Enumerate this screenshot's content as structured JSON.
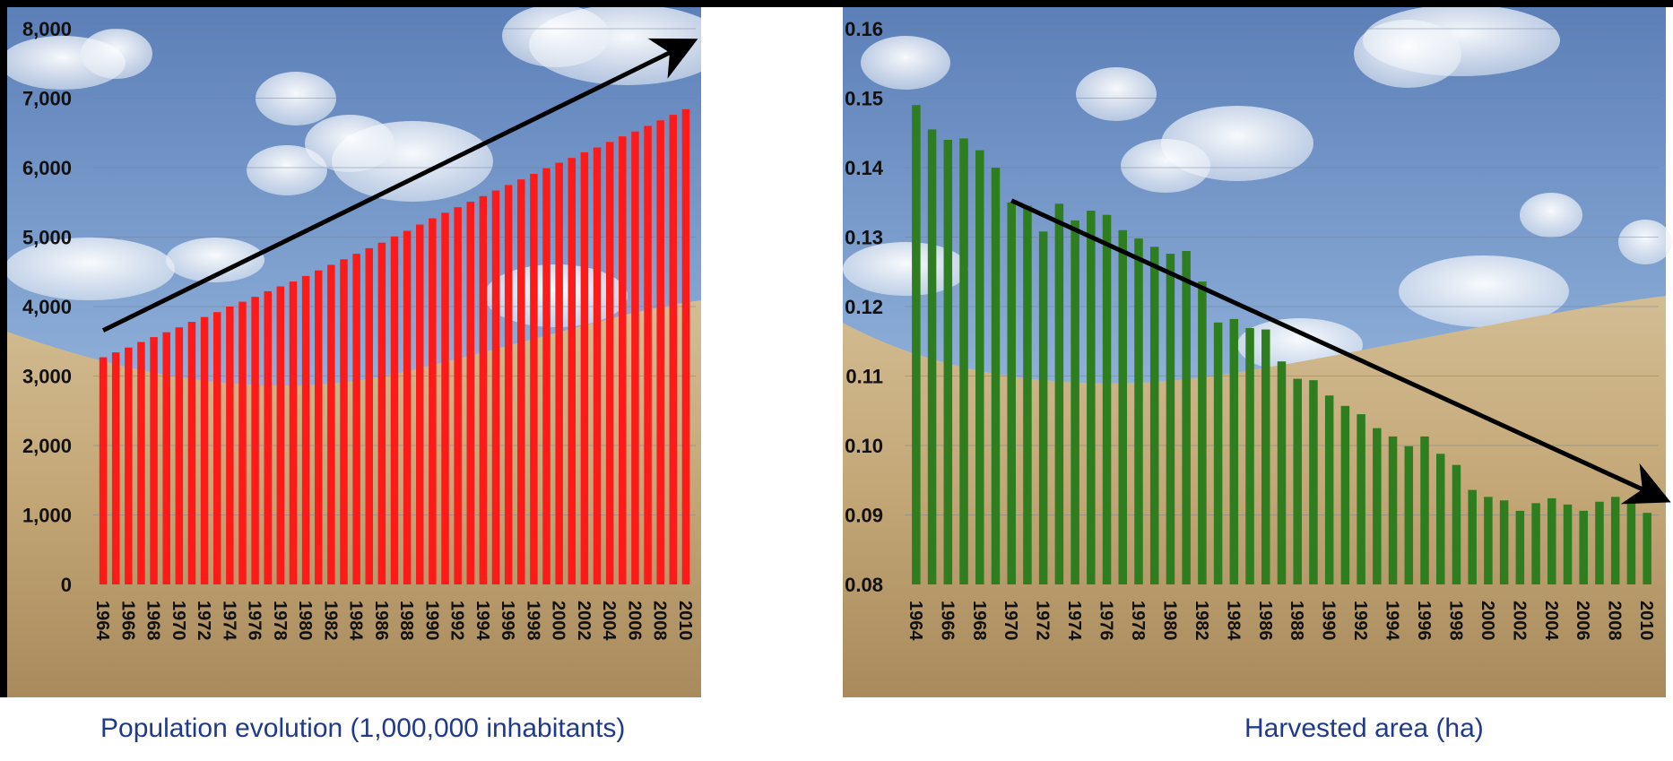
{
  "chart_data": [
    {
      "type": "bar",
      "caption": "Population evolution (1,000,000 inhabitants)",
      "color": "#ff1a1a",
      "ylim": [
        0,
        8000
      ],
      "y_ticks": [
        "0",
        "1,000",
        "2,000",
        "3,000",
        "4,000",
        "5,000",
        "6,000",
        "7,000",
        "8,000"
      ],
      "x_tick_labels": [
        "1964",
        "1966",
        "1968",
        "1970",
        "1972",
        "1974",
        "1976",
        "1978",
        "1980",
        "1982",
        "1984",
        "1986",
        "1988",
        "1990",
        "1992",
        "1994",
        "1996",
        "1998",
        "2000",
        "2002",
        "2004",
        "2006",
        "2008",
        "2010"
      ],
      "categories": [
        1964,
        1965,
        1966,
        1967,
        1968,
        1969,
        1970,
        1971,
        1972,
        1973,
        1974,
        1975,
        1976,
        1977,
        1978,
        1979,
        1980,
        1981,
        1982,
        1983,
        1984,
        1985,
        1986,
        1987,
        1988,
        1989,
        1990,
        1991,
        1992,
        1993,
        1994,
        1995,
        1996,
        1997,
        1998,
        1999,
        2000,
        2001,
        2002,
        2003,
        2004,
        2005,
        2006,
        2007,
        2008,
        2009,
        2010
      ],
      "values": [
        3270,
        3340,
        3410,
        3490,
        3560,
        3630,
        3700,
        3780,
        3850,
        3920,
        4000,
        4070,
        4140,
        4220,
        4290,
        4360,
        4440,
        4520,
        4600,
        4680,
        4760,
        4840,
        4920,
        5010,
        5090,
        5180,
        5270,
        5350,
        5430,
        5510,
        5590,
        5670,
        5750,
        5830,
        5910,
        5990,
        6070,
        6140,
        6220,
        6290,
        6370,
        6450,
        6520,
        6600,
        6680,
        6760,
        6840
      ],
      "trend": "up",
      "grid": true
    },
    {
      "type": "bar",
      "caption": "Harvested area (ha)",
      "color": "#2e7d1e",
      "ylim": [
        0.08,
        0.16
      ],
      "y_ticks": [
        "0.08",
        "0.09",
        "0.10",
        "0.11",
        "0.12",
        "0.13",
        "0.14",
        "0.15",
        "0.16"
      ],
      "x_tick_labels": [
        "1964",
        "1966",
        "1968",
        "1970",
        "1972",
        "1974",
        "1976",
        "1978",
        "1980",
        "1982",
        "1984",
        "1986",
        "1988",
        "1990",
        "1992",
        "1994",
        "1996",
        "1998",
        "2000",
        "2002",
        "2004",
        "2006",
        "2008",
        "2010"
      ],
      "categories": [
        1964,
        1965,
        1966,
        1967,
        1968,
        1969,
        1970,
        1971,
        1972,
        1973,
        1974,
        1975,
        1976,
        1977,
        1978,
        1979,
        1980,
        1981,
        1982,
        1983,
        1984,
        1985,
        1986,
        1987,
        1988,
        1989,
        1990,
        1991,
        1992,
        1993,
        1994,
        1995,
        1996,
        1997,
        1998,
        1999,
        2000,
        2001,
        2002,
        2003,
        2004,
        2005,
        2006,
        2007,
        2008,
        2009,
        2010
      ],
      "values": [
        0.149,
        0.1455,
        0.144,
        0.1442,
        0.1425,
        0.14,
        0.135,
        0.1345,
        0.1308,
        0.1348,
        0.1324,
        0.1338,
        0.1332,
        0.131,
        0.1298,
        0.1286,
        0.1276,
        0.128,
        0.1236,
        0.1177,
        0.1182,
        0.1169,
        0.1167,
        0.1121,
        0.1096,
        0.1094,
        0.1072,
        0.1057,
        0.1045,
        0.1025,
        0.1013,
        0.0999,
        0.1013,
        0.0988,
        0.0972,
        0.0936,
        0.0926,
        0.0921,
        0.0906,
        0.0917,
        0.0924,
        0.0915,
        0.0906,
        0.0919,
        0.0926,
        0.0919,
        0.0903
      ],
      "trend": "down",
      "grid": true
    }
  ]
}
